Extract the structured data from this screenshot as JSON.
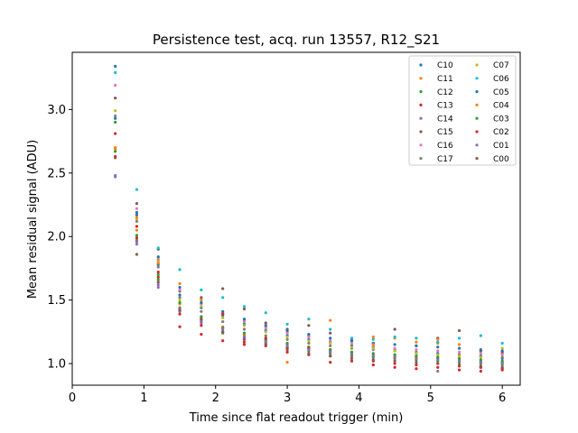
{
  "chart_data": {
    "type": "scatter",
    "title": "Persistence test, acq. run 13557, R12_S21",
    "xlabel": "Time since flat readout trigger (min)",
    "ylabel": "Mean residual signal (ADU)",
    "xlim": [
      0,
      6.25
    ],
    "ylim": [
      0.83,
      3.45
    ],
    "xticks": [
      0,
      1,
      2,
      3,
      4,
      5,
      6
    ],
    "xtick_labels": [
      "0",
      "1",
      "2",
      "3",
      "4",
      "5",
      "6"
    ],
    "yticks": [
      1.0,
      1.5,
      2.0,
      2.5,
      3.0
    ],
    "ytick_labels": [
      "1.0",
      "1.5",
      "2.0",
      "2.5",
      "3.0"
    ],
    "grid": false,
    "legend_position": "top-right",
    "legend_columns": 2,
    "x": [
      0.6,
      0.9,
      1.2,
      1.5,
      1.8,
      2.1,
      2.4,
      2.7,
      3.0,
      3.3,
      3.6,
      3.9,
      4.2,
      4.5,
      4.8,
      5.1,
      5.4,
      5.7,
      6.0
    ],
    "series": [
      {
        "name": "C10",
        "color": "#1f77b4",
        "values": [
          3.34,
          2.17,
          1.78,
          1.54,
          1.44,
          1.38,
          1.31,
          1.26,
          1.22,
          1.19,
          1.17,
          1.14,
          1.13,
          1.11,
          1.09,
          1.08,
          1.07,
          1.06,
          1.04
        ]
      },
      {
        "name": "C11",
        "color": "#ff7f0e",
        "values": [
          2.69,
          2.05,
          1.82,
          1.63,
          1.5,
          1.4,
          1.34,
          1.29,
          1.25,
          1.22,
          1.34,
          1.19,
          1.21,
          1.2,
          1.17,
          1.16,
          1.15,
          1.1,
          1.08
        ]
      },
      {
        "name": "C12",
        "color": "#2ca02c",
        "values": [
          2.9,
          1.97,
          1.66,
          1.44,
          1.33,
          1.24,
          1.2,
          1.16,
          1.13,
          1.1,
          1.08,
          1.06,
          1.05,
          1.04,
          1.03,
          1.02,
          1.01,
          1.0,
          0.99
        ]
      },
      {
        "name": "C13",
        "color": "#d62728",
        "values": [
          2.81,
          2.08,
          1.72,
          1.29,
          1.23,
          1.18,
          1.15,
          1.14,
          1.09,
          1.07,
          1.01,
          1.02,
          0.99,
          0.97,
          0.96,
          0.97,
          0.95,
          0.94,
          0.95
        ]
      },
      {
        "name": "C14",
        "color": "#9467bd",
        "values": [
          2.48,
          1.94,
          1.6,
          1.41,
          1.32,
          1.25,
          1.22,
          1.18,
          1.15,
          1.12,
          1.1,
          1.08,
          1.07,
          1.06,
          1.05,
          1.04,
          1.03,
          1.02,
          1.01
        ]
      },
      {
        "name": "C15",
        "color": "#8c564b",
        "values": [
          3.09,
          2.26,
          1.9,
          1.57,
          1.52,
          1.59,
          1.43,
          1.32,
          1.27,
          1.3,
          1.24,
          1.18,
          1.16,
          1.27,
          1.14,
          1.2,
          1.26,
          1.1,
          1.09
        ]
      },
      {
        "name": "C16",
        "color": "#e377c2",
        "values": [
          3.19,
          2.22,
          1.81,
          1.58,
          1.47,
          1.39,
          1.33,
          1.28,
          1.24,
          1.21,
          1.18,
          1.16,
          1.14,
          1.12,
          1.11,
          1.1,
          1.09,
          1.08,
          1.07
        ]
      },
      {
        "name": "C17",
        "color": "#7f7f7f",
        "values": [
          2.95,
          2.12,
          1.76,
          1.52,
          1.41,
          1.33,
          1.27,
          1.22,
          1.19,
          1.16,
          1.14,
          1.12,
          1.11,
          1.1,
          1.09,
          0.94,
          1.07,
          0.97,
          1.05
        ]
      },
      {
        "name": "C07",
        "color": "#bcbd22",
        "values": [
          2.99,
          2.14,
          1.8,
          1.5,
          1.45,
          1.36,
          1.3,
          1.25,
          1.21,
          1.18,
          1.16,
          1.13,
          1.12,
          1.1,
          1.08,
          1.07,
          1.06,
          1.05,
          1.12
        ]
      },
      {
        "name": "C06",
        "color": "#17becf",
        "values": [
          3.29,
          2.37,
          1.91,
          1.74,
          1.58,
          1.52,
          1.45,
          1.4,
          1.31,
          1.35,
          1.27,
          1.2,
          1.19,
          1.21,
          1.2,
          1.17,
          1.2,
          1.22,
          1.16
        ]
      },
      {
        "name": "C05",
        "color": "#1f77b4",
        "values": [
          2.93,
          2.19,
          1.84,
          1.6,
          1.48,
          1.41,
          1.35,
          1.3,
          1.26,
          1.23,
          1.2,
          1.18,
          1.16,
          1.15,
          1.14,
          1.13,
          1.12,
          1.11,
          1.1
        ]
      },
      {
        "name": "C04",
        "color": "#ff7f0e",
        "values": [
          2.7,
          2.15,
          1.79,
          1.47,
          1.36,
          1.29,
          1.23,
          1.19,
          1.01,
          1.13,
          1.11,
          1.09,
          1.15,
          1.06,
          1.05,
          1.19,
          1.03,
          1.01,
          1.0
        ]
      },
      {
        "name": "C03",
        "color": "#2ca02c",
        "values": [
          2.67,
          2.01,
          1.7,
          1.48,
          1.37,
          1.28,
          1.24,
          1.19,
          1.16,
          1.13,
          1.11,
          1.09,
          1.08,
          1.07,
          1.06,
          1.05,
          1.04,
          1.03,
          1.02
        ]
      },
      {
        "name": "C02",
        "color": "#d62728",
        "values": [
          2.63,
          1.99,
          1.68,
          1.39,
          1.3,
          1.39,
          1.17,
          1.2,
          1.12,
          1.12,
          1.06,
          1.07,
          1.02,
          1.0,
          0.99,
          1.0,
          0.98,
          0.97,
          0.96
        ]
      },
      {
        "name": "C01",
        "color": "#9467bd",
        "values": [
          2.47,
          1.96,
          1.62,
          1.43,
          1.34,
          1.27,
          1.21,
          1.17,
          1.14,
          1.11,
          1.09,
          1.07,
          1.06,
          1.05,
          1.04,
          1.03,
          1.02,
          1.01,
          1.0
        ]
      },
      {
        "name": "C00",
        "color": "#8c564b",
        "values": [
          2.62,
          1.86,
          1.64,
          1.42,
          1.35,
          1.25,
          1.19,
          1.15,
          1.11,
          1.08,
          1.06,
          1.04,
          1.03,
          1.02,
          1.01,
          1.0,
          0.99,
          0.98,
          0.97
        ]
      }
    ]
  }
}
